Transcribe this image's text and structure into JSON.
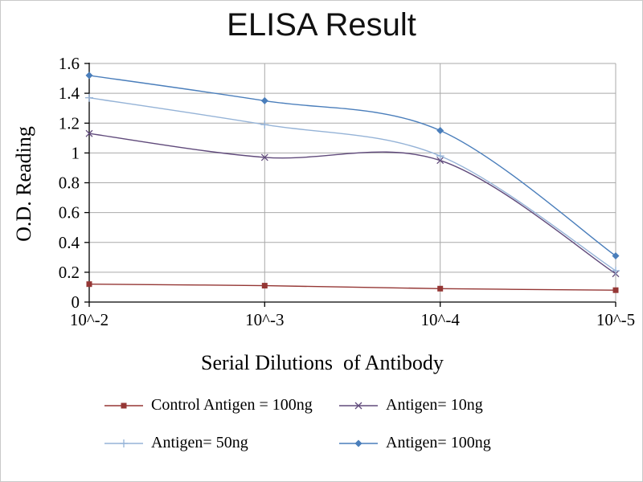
{
  "chart_data": {
    "type": "line",
    "title": "ELISA Result",
    "ylabel": "O.D. Reading",
    "xlabel": "Serial Dilutions  of Antibody",
    "categories": [
      "10^-2",
      "10^-3",
      "10^-4",
      "10^-5"
    ],
    "ylim": [
      0,
      1.6
    ],
    "yticks": [
      0,
      0.2,
      0.4,
      0.6,
      0.8,
      1,
      1.2,
      1.4,
      1.6
    ],
    "grid": true,
    "legend_position": "bottom",
    "axis_color": "#000000",
    "grid_color": "#a9a9a9",
    "series": [
      {
        "name": "Control Antigen = 100ng",
        "marker": "square",
        "color": "#953735",
        "values": [
          0.12,
          0.11,
          0.09,
          0.08
        ]
      },
      {
        "name": "Antigen= 10ng",
        "marker": "x",
        "color": "#604a7b",
        "values": [
          1.13,
          0.97,
          0.95,
          0.19
        ]
      },
      {
        "name": "Antigen= 50ng",
        "marker": "plus",
        "color": "#95b3d7",
        "values": [
          1.37,
          1.19,
          0.98,
          0.21
        ]
      },
      {
        "name": "Antigen= 100ng",
        "marker": "diamond",
        "color": "#4a7ebb",
        "values": [
          1.52,
          1.35,
          1.15,
          0.31
        ]
      }
    ]
  }
}
